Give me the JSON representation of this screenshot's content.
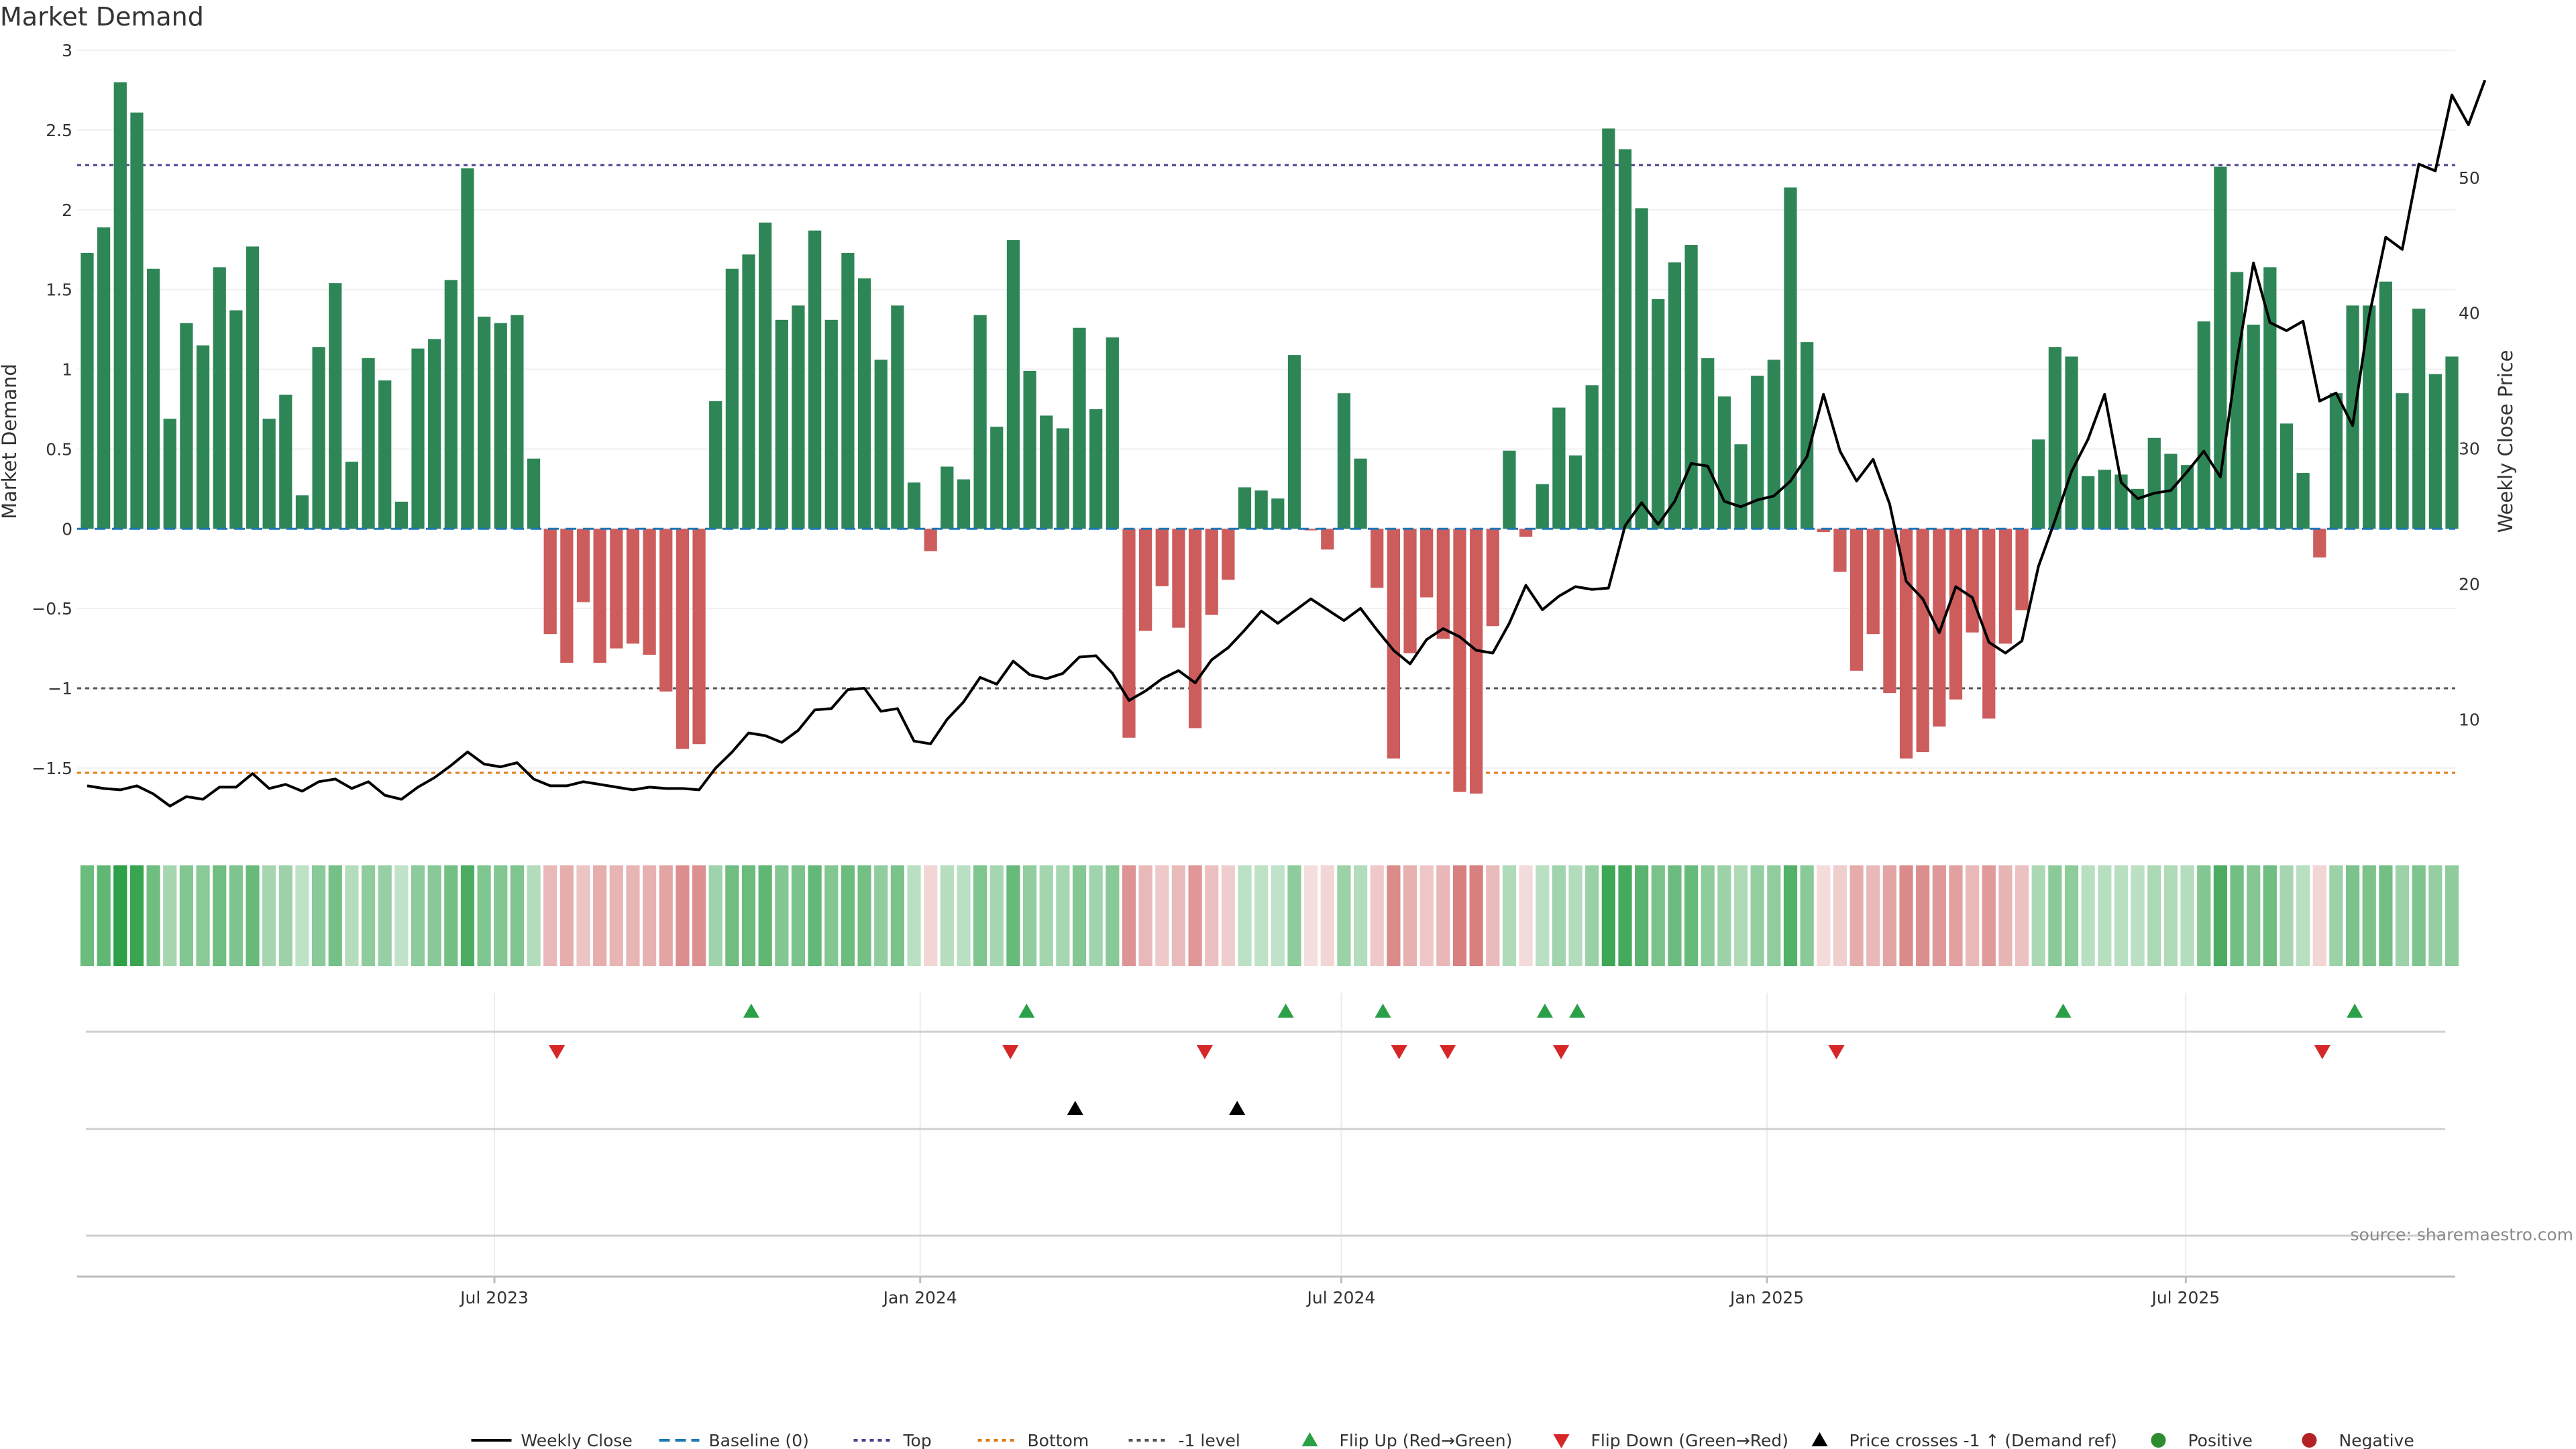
{
  "chart_data": {
    "type": "bar",
    "title": "Market Demand",
    "ylabel_left": "Market Demand",
    "ylabel_right": "Weekly Close Price",
    "source": "source: sharemaestro.com",
    "ylim_left": [
      -1.9,
      3.0
    ],
    "yticks_left": [
      3,
      2.5,
      2,
      1.5,
      1,
      0.5,
      0,
      -0.5,
      -1,
      -1.5
    ],
    "ytick_labels_left": [
      "3",
      "2.5",
      "2",
      "1.5",
      "1",
      "0.5",
      "0",
      "−0.5",
      "−1",
      "−1.5"
    ],
    "ylim_right": [
      1.7,
      59.4
    ],
    "yticks_right": [
      10,
      20,
      30,
      40,
      50
    ],
    "x_start": "2023-01-06",
    "x_end": "2025-10-24",
    "xticks": [
      {
        "date": "2023-07-01",
        "label": "Jul 2023"
      },
      {
        "date": "2024-01-01",
        "label": "Jan 2024"
      },
      {
        "date": "2024-07-01",
        "label": "Jul 2024"
      },
      {
        "date": "2025-01-01",
        "label": "Jan 2025"
      },
      {
        "date": "2025-07-01",
        "label": "Jul 2025"
      }
    ],
    "reference_lines": {
      "top": 2.28,
      "bottom": -1.53,
      "minus_one": -1.0,
      "baseline": 0
    },
    "demand": [
      1.73,
      1.89,
      2.8,
      2.61,
      1.63,
      0.69,
      1.29,
      1.15,
      1.64,
      1.37,
      1.77,
      0.69,
      0.84,
      0.21,
      1.14,
      1.54,
      0.42,
      1.07,
      0.93,
      0.17,
      1.13,
      1.19,
      1.56,
      2.26,
      1.33,
      1.29,
      1.34,
      0.44,
      -0.66,
      -0.84,
      -0.46,
      -0.84,
      -0.75,
      -0.72,
      -0.79,
      -1.02,
      -1.38,
      -1.35,
      0.8,
      1.63,
      1.72,
      1.92,
      1.31,
      1.4,
      1.87,
      1.31,
      1.73,
      1.57,
      1.06,
      1.4,
      0.29,
      -0.14,
      0.39,
      0.31,
      1.34,
      0.64,
      1.81,
      0.99,
      0.71,
      0.63,
      1.26,
      0.75,
      1.2,
      -1.31,
      -0.64,
      -0.36,
      -0.62,
      -1.25,
      -0.54,
      -0.32,
      0.26,
      0.24,
      0.19,
      1.09,
      -0.01,
      -0.13,
      0.85,
      0.44,
      -0.37,
      -1.44,
      -0.78,
      -0.43,
      -0.69,
      -1.65,
      -1.66,
      -0.61,
      0.49,
      -0.05,
      0.28,
      0.76,
      0.46,
      0.9,
      2.51,
      2.38,
      2.01,
      1.44,
      1.67,
      1.78,
      1.07,
      0.83,
      0.53,
      0.96,
      1.06,
      2.14,
      1.17,
      -0.02,
      -0.27,
      -0.89,
      -0.66,
      -1.03,
      -1.44,
      -1.4,
      -1.24,
      -1.07,
      -0.65,
      -1.19,
      -0.72,
      -0.51,
      0.56,
      1.14,
      1.08,
      0.33,
      0.37,
      0.34,
      0.25,
      0.57,
      0.47,
      0.4,
      1.3,
      2.27,
      1.61,
      1.28,
      1.64,
      0.66,
      0.35,
      -0.18,
      0.85,
      1.4,
      1.4,
      1.55,
      0.85,
      1.38,
      0.97,
      1.08
    ],
    "weekly_close": [
      5.1,
      4.9,
      4.8,
      5.1,
      4.5,
      3.6,
      4.3,
      4.1,
      5.0,
      5.0,
      6.0,
      4.9,
      5.2,
      4.7,
      5.4,
      5.6,
      4.9,
      5.4,
      4.4,
      4.1,
      5.0,
      5.7,
      6.6,
      7.6,
      6.7,
      6.5,
      6.8,
      5.6,
      5.1,
      5.1,
      5.4,
      5.2,
      5.0,
      4.8,
      5.0,
      4.9,
      4.9,
      4.8,
      6.4,
      7.6,
      9.0,
      8.8,
      8.3,
      9.2,
      10.7,
      10.8,
      12.2,
      12.3,
      10.6,
      10.8,
      8.4,
      8.2,
      10.0,
      11.3,
      13.1,
      12.6,
      14.3,
      13.3,
      13.0,
      13.4,
      14.6,
      14.7,
      13.4,
      11.4,
      12.1,
      13.0,
      13.6,
      12.7,
      14.4,
      15.3,
      16.6,
      18.0,
      17.1,
      18.0,
      18.9,
      18.1,
      17.3,
      18.2,
      16.6,
      15.1,
      14.1,
      15.9,
      16.7,
      16.1,
      15.1,
      14.9,
      17.1,
      19.9,
      18.1,
      19.1,
      19.8,
      19.6,
      19.7,
      24.3,
      26.0,
      24.4,
      26.1,
      28.9,
      28.7,
      26.1,
      25.7,
      26.2,
      26.5,
      27.6,
      29.4,
      34.0,
      29.8,
      27.6,
      29.2,
      25.9,
      20.2,
      18.9,
      16.4,
      19.8,
      19.0,
      15.7,
      14.9,
      15.8,
      21.3,
      24.7,
      28.3,
      30.7,
      34.0,
      27.5,
      26.3,
      26.7,
      26.9,
      28.3,
      29.8,
      27.9,
      36.5,
      43.7,
      39.3,
      38.7,
      39.4,
      33.5,
      34.1,
      31.7,
      39.8,
      45.6,
      44.7,
      51.0,
      50.5,
      56.1,
      53.9,
      57.2
    ],
    "heatmap_strip": "intensity per week (mirrors demand)",
    "flip_up_dates": [
      "2023-10-20",
      "2024-02-16",
      "2024-06-07",
      "2024-07-19",
      "2024-09-27",
      "2024-10-11",
      "2025-05-09",
      "2025-09-12"
    ],
    "flip_down_dates": [
      "2023-07-28",
      "2024-02-09",
      "2024-05-03",
      "2024-07-26",
      "2024-08-16",
      "2024-10-04",
      "2025-01-31",
      "2025-08-29"
    ],
    "price_cross_dates": [
      "2024-03-08",
      "2024-05-17"
    ],
    "legend": [
      {
        "label": "Weekly Close",
        "symbol": "solid",
        "color": "#000000"
      },
      {
        "label": "Baseline (0)",
        "symbol": "dashed",
        "color": "#1f77b4"
      },
      {
        "label": "Top",
        "symbol": "dotted",
        "color": "#4c3f8e"
      },
      {
        "label": "Bottom",
        "symbol": "dotted",
        "color": "#e07b1a"
      },
      {
        "label": "-1 level",
        "symbol": "dotted",
        "color": "#555555"
      },
      {
        "label": "Flip Up (Red→Green)",
        "symbol": "triangle-up",
        "color": "#2ca048"
      },
      {
        "label": "Flip Down (Green→Red)",
        "symbol": "triangle-down",
        "color": "#d62728"
      },
      {
        "label": "Price crosses -1 ↑ (Demand ref)",
        "symbol": "triangle-up",
        "color": "#000000"
      },
      {
        "label": "Positive",
        "symbol": "circle",
        "color": "#2e8b2e"
      },
      {
        "label": "Negative",
        "symbol": "circle",
        "color": "#b22222"
      }
    ],
    "colors": {
      "positive_bar": "#2e8656",
      "negative_bar": "#cd5c5c",
      "close_line": "#000000",
      "top_line": "#4c3f8e",
      "bottom_line": "#e07b1a",
      "minus_one_line": "#555555",
      "baseline": "#1f77b4",
      "flip_up": "#2ca048",
      "flip_down": "#d62728",
      "price_cross": "#000000"
    }
  }
}
